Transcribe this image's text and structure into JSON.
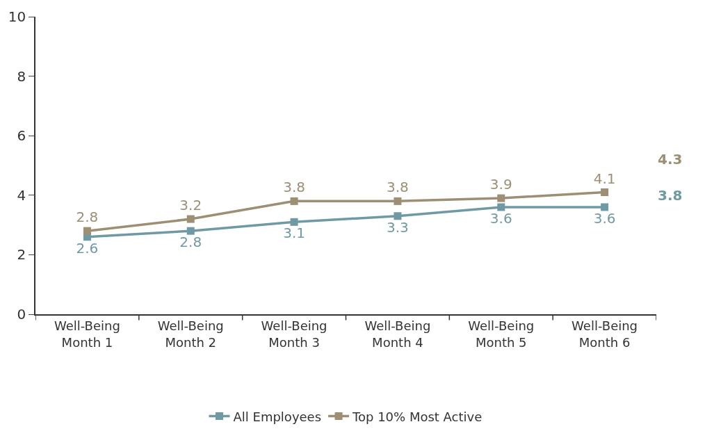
{
  "chart_data": {
    "type": "line",
    "categories": [
      "Well-Being Month 1",
      "Well-Being Month 2",
      "Well-Being Month 3",
      "Well-Being Month 4",
      "Well-Being Month 5",
      "Well-Being Month 6"
    ],
    "series": [
      {
        "name": "All Employees",
        "color": "#6f9aa3",
        "values": [
          2.6,
          2.8,
          3.1,
          3.3,
          3.6,
          3.6
        ]
      },
      {
        "name": "Top 10% Most Active",
        "color": "#9c8f74",
        "values": [
          2.8,
          3.2,
          3.8,
          3.8,
          3.9,
          4.1
        ]
      }
    ],
    "ylim": [
      0,
      10
    ],
    "yticks": [
      0,
      2,
      4,
      6,
      8,
      10
    ],
    "annotations": [
      "4.3",
      "3.8"
    ],
    "data_labels": true,
    "marker": "square",
    "line_style": "solid",
    "legend": "bottom"
  }
}
